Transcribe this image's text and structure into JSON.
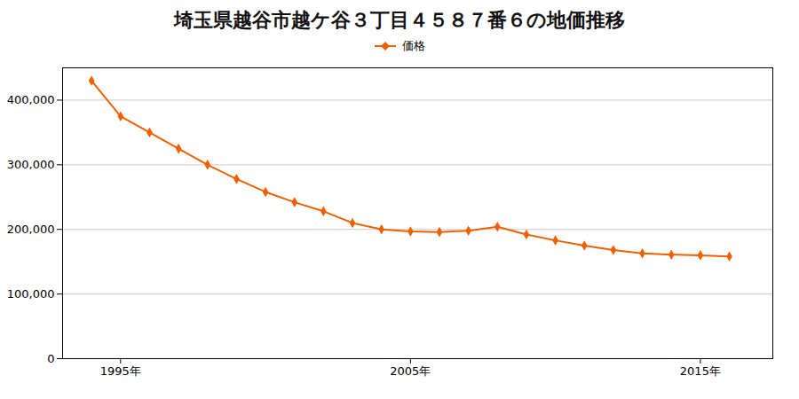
{
  "chart_data": {
    "type": "line",
    "title": "埼玉県越谷市越ケ谷３丁目４５８７番６の地価推移",
    "x": [
      1994,
      1995,
      1996,
      1997,
      1998,
      1999,
      2000,
      2001,
      2002,
      2003,
      2004,
      2005,
      2006,
      2007,
      2008,
      2009,
      2010,
      2011,
      2012,
      2013,
      2014,
      2015,
      2016
    ],
    "series": [
      {
        "name": "価格",
        "color": "#f06000",
        "marker": "diamond",
        "values": [
          430000,
          375000,
          350000,
          325000,
          300000,
          278000,
          258000,
          242000,
          228000,
          210000,
          200000,
          197000,
          196000,
          198000,
          204000,
          192000,
          183000,
          175000,
          168000,
          163000,
          161000,
          160000,
          158000
        ]
      }
    ],
    "xlim": [
      1993.0,
      2017.5
    ],
    "xticks": [
      {
        "value": 1995,
        "label": "1995年"
      },
      {
        "value": 2005,
        "label": "2005年"
      },
      {
        "value": 2015,
        "label": "2015年"
      }
    ],
    "ylim": [
      0,
      450000
    ],
    "yticks": [
      0,
      {
        "value": 100000,
        "label": "100,000"
      },
      {
        "value": 200000,
        "label": "200,000"
      },
      {
        "value": 300000,
        "label": "300,000"
      },
      {
        "value": 400000,
        "label": "400,000"
      }
    ],
    "grid": "y",
    "legend": "top"
  }
}
